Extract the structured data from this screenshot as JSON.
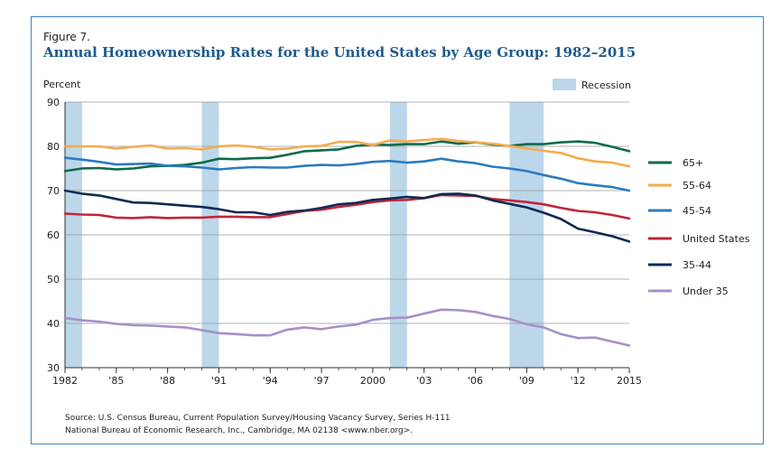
{
  "figure_label": "Figure 7.",
  "title": "Annual Homeownership Rates for the United States by Age Group: 1982–2015",
  "source_line1": "Source: U.S. Census Bureau, Current Population Survey/Housing Vacancy Survey, Series H-111",
  "source_line2": "National Bureau of Economic Research, Inc., Cambridge, MA 02138 <www.nber.org>.",
  "colors": {
    "frame": "#3a84c4",
    "title": "#1e5a8e",
    "recession": "#bcd7ea",
    "s65plus": "#0e6b4a",
    "s55_64": "#f5ab4e",
    "s45_54": "#2b7bbf",
    "us": "#c0253a",
    "s35_44": "#0e2a54",
    "under35": "#a591c8"
  },
  "chart_data": {
    "type": "line",
    "title": "Annual Homeownership Rates for the United States by Age Group: 1982–2015",
    "ylabel": "Percent",
    "xlabel": "",
    "ylim": [
      30,
      90
    ],
    "xlim": [
      1982,
      2015
    ],
    "y_ticks": [
      "30",
      "40",
      "50",
      "60",
      "70",
      "80",
      "90"
    ],
    "x_ticks": [
      {
        "value": 1982,
        "label": "1982"
      },
      {
        "value": 1985,
        "label": "'85"
      },
      {
        "value": 1988,
        "label": "'88"
      },
      {
        "value": 1991,
        "label": "'91"
      },
      {
        "value": 1994,
        "label": "'94"
      },
      {
        "value": 1997,
        "label": "'97"
      },
      {
        "value": 2000,
        "label": "2000"
      },
      {
        "value": 2003,
        "label": "'03"
      },
      {
        "value": 2006,
        "label": "'06"
      },
      {
        "value": 2009,
        "label": "'09"
      },
      {
        "value": 2012,
        "label": "'12"
      },
      {
        "value": 2015,
        "label": "2015"
      }
    ],
    "grid": "horizontal",
    "legend_position": "right",
    "recession_label": "Recession",
    "recessions": [
      [
        1982,
        1983
      ],
      [
        1990,
        1991
      ],
      [
        2001,
        2002
      ],
      [
        2008,
        2010
      ]
    ],
    "x": [
      1982,
      1983,
      1984,
      1985,
      1986,
      1987,
      1988,
      1989,
      1990,
      1991,
      1992,
      1993,
      1994,
      1995,
      1996,
      1997,
      1998,
      1999,
      2000,
      2001,
      2002,
      2003,
      2004,
      2005,
      2006,
      2007,
      2008,
      2009,
      2010,
      2011,
      2012,
      2013,
      2014,
      2015
    ],
    "series": [
      {
        "name": "65+",
        "color_key": "s65plus",
        "values": [
          74.4,
          75.0,
          75.1,
          74.8,
          75.0,
          75.5,
          75.6,
          75.8,
          76.3,
          77.2,
          77.1,
          77.3,
          77.4,
          78.1,
          78.9,
          79.1,
          79.3,
          80.1,
          80.4,
          80.3,
          80.5,
          80.5,
          81.1,
          80.6,
          80.9,
          80.4,
          80.1,
          80.5,
          80.5,
          80.9,
          81.1,
          80.8,
          79.9,
          78.9
        ]
      },
      {
        "name": "55-64",
        "color_key": "s55_64",
        "values": [
          80.0,
          80.0,
          80.0,
          79.5,
          79.9,
          80.2,
          79.5,
          79.6,
          79.3,
          80.0,
          80.2,
          79.9,
          79.3,
          79.5,
          80.0,
          80.1,
          81.0,
          81.0,
          80.3,
          81.3,
          81.1,
          81.4,
          81.7,
          81.2,
          80.9,
          80.6,
          80.1,
          79.5,
          79.0,
          78.5,
          77.3,
          76.6,
          76.3,
          75.5
        ]
      },
      {
        "name": "45-54",
        "color_key": "s45_54",
        "values": [
          77.4,
          77.0,
          76.5,
          75.9,
          76.0,
          76.1,
          75.6,
          75.5,
          75.2,
          74.8,
          75.1,
          75.3,
          75.2,
          75.2,
          75.6,
          75.8,
          75.7,
          76.0,
          76.5,
          76.7,
          76.3,
          76.6,
          77.2,
          76.6,
          76.2,
          75.4,
          75.0,
          74.4,
          73.5,
          72.7,
          71.7,
          71.2,
          70.8,
          70.0
        ]
      },
      {
        "name": "United States",
        "color_key": "us",
        "values": [
          64.8,
          64.6,
          64.5,
          63.9,
          63.8,
          64.0,
          63.8,
          63.9,
          63.9,
          64.1,
          64.1,
          64.0,
          64.0,
          64.7,
          65.4,
          65.7,
          66.3,
          66.8,
          67.4,
          67.8,
          67.9,
          68.3,
          69.0,
          68.9,
          68.8,
          68.1,
          67.8,
          67.4,
          66.9,
          66.1,
          65.4,
          65.1,
          64.5,
          63.7
        ]
      },
      {
        "name": "35-44",
        "color_key": "s35_44",
        "values": [
          70.0,
          69.3,
          68.9,
          68.1,
          67.3,
          67.2,
          66.9,
          66.6,
          66.3,
          65.8,
          65.1,
          65.1,
          64.5,
          65.2,
          65.5,
          66.1,
          66.9,
          67.2,
          67.9,
          68.2,
          68.6,
          68.3,
          69.2,
          69.3,
          68.9,
          67.8,
          67.0,
          66.2,
          65.0,
          63.6,
          61.4,
          60.6,
          59.7,
          58.5
        ]
      },
      {
        "name": "Under 35",
        "color_key": "under35",
        "values": [
          41.2,
          40.7,
          40.4,
          39.9,
          39.6,
          39.5,
          39.3,
          39.1,
          38.5,
          37.8,
          37.6,
          37.3,
          37.3,
          38.6,
          39.1,
          38.7,
          39.3,
          39.7,
          40.8,
          41.2,
          41.3,
          42.2,
          43.1,
          43.0,
          42.6,
          41.7,
          41.0,
          39.8,
          39.1,
          37.6,
          36.7,
          36.8,
          35.9,
          35.0
        ]
      }
    ]
  }
}
